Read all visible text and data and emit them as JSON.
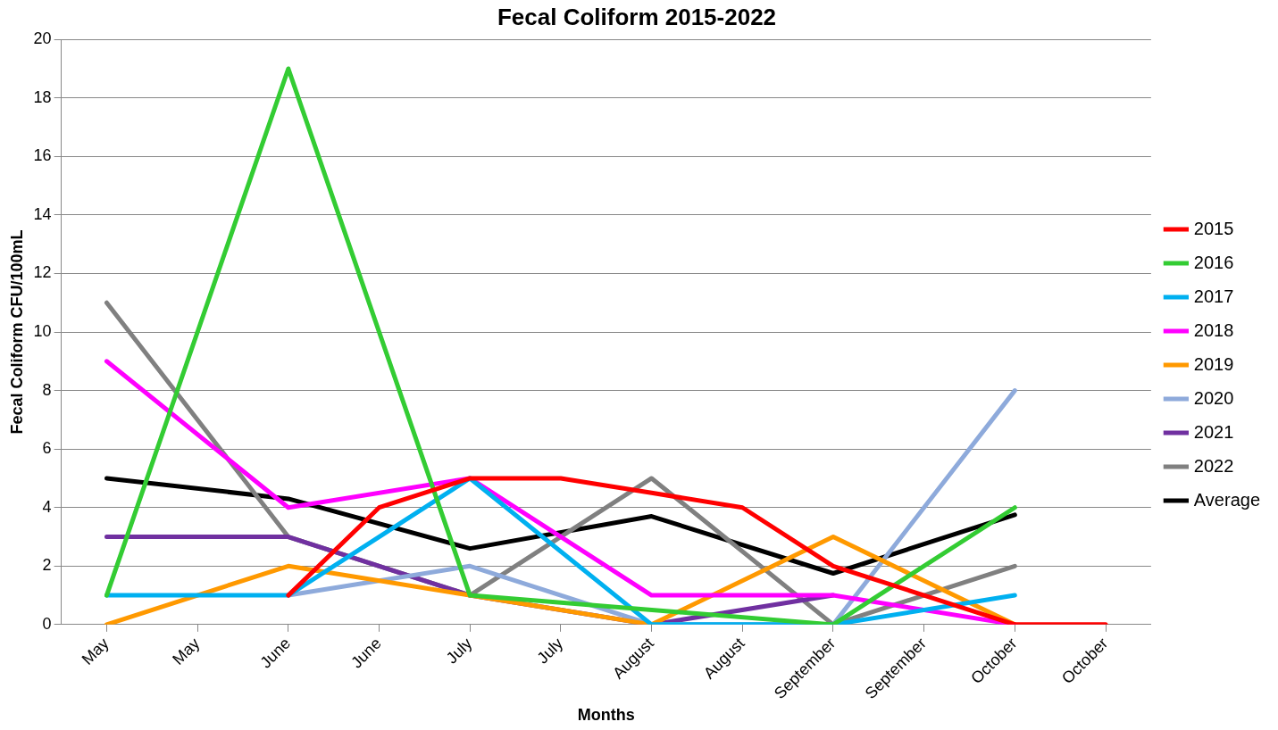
{
  "chart_data": {
    "type": "line",
    "title": "Fecal Coliform 2015-2022",
    "xlabel": "Months",
    "ylabel": "Fecal Coliform CFU/100mL",
    "categories": [
      "May",
      "May",
      "June",
      "June",
      "July",
      "July",
      "August",
      "August",
      "September",
      "September",
      "October",
      "October"
    ],
    "series": [
      {
        "name": "2015",
        "color": "#ff0000",
        "values": [
          null,
          null,
          1,
          4,
          5,
          5,
          4.5,
          4,
          2,
          null,
          0,
          0
        ]
      },
      {
        "name": "2016",
        "color": "#33cc33",
        "values": [
          1,
          null,
          19,
          null,
          1,
          null,
          null,
          null,
          0,
          null,
          4,
          null
        ]
      },
      {
        "name": "2017",
        "color": "#00b0f0",
        "values": [
          1,
          null,
          1,
          null,
          5,
          null,
          0,
          null,
          0,
          null,
          1,
          null
        ]
      },
      {
        "name": "2018",
        "color": "#ff00ff",
        "values": [
          9,
          null,
          4,
          null,
          5,
          null,
          1,
          null,
          1,
          null,
          0,
          null
        ]
      },
      {
        "name": "2019",
        "color": "#ff9900",
        "values": [
          0,
          null,
          2,
          null,
          1,
          null,
          0,
          null,
          3,
          null,
          0,
          null
        ]
      },
      {
        "name": "2020",
        "color": "#8eaadb",
        "values": [
          null,
          null,
          1,
          null,
          2,
          null,
          0,
          null,
          0,
          null,
          8,
          null
        ]
      },
      {
        "name": "2021",
        "color": "#7030a0",
        "values": [
          3,
          null,
          3,
          null,
          1,
          null,
          0,
          null,
          1,
          null,
          null,
          null
        ]
      },
      {
        "name": "2022",
        "color": "#808080",
        "values": [
          11,
          null,
          3,
          null,
          1,
          null,
          5,
          null,
          0,
          null,
          2,
          null
        ]
      },
      {
        "name": "Average",
        "color": "#000000",
        "values": [
          5,
          null,
          4.3,
          null,
          2.6,
          null,
          3.7,
          null,
          1.75,
          null,
          3.75,
          null
        ]
      }
    ],
    "ylim": [
      0,
      20
    ],
    "yticks": [
      0,
      2,
      4,
      6,
      8,
      10,
      12,
      14,
      16,
      18,
      20
    ],
    "grid": "y",
    "legend": "right",
    "marker": "none",
    "line_style": "solid"
  }
}
